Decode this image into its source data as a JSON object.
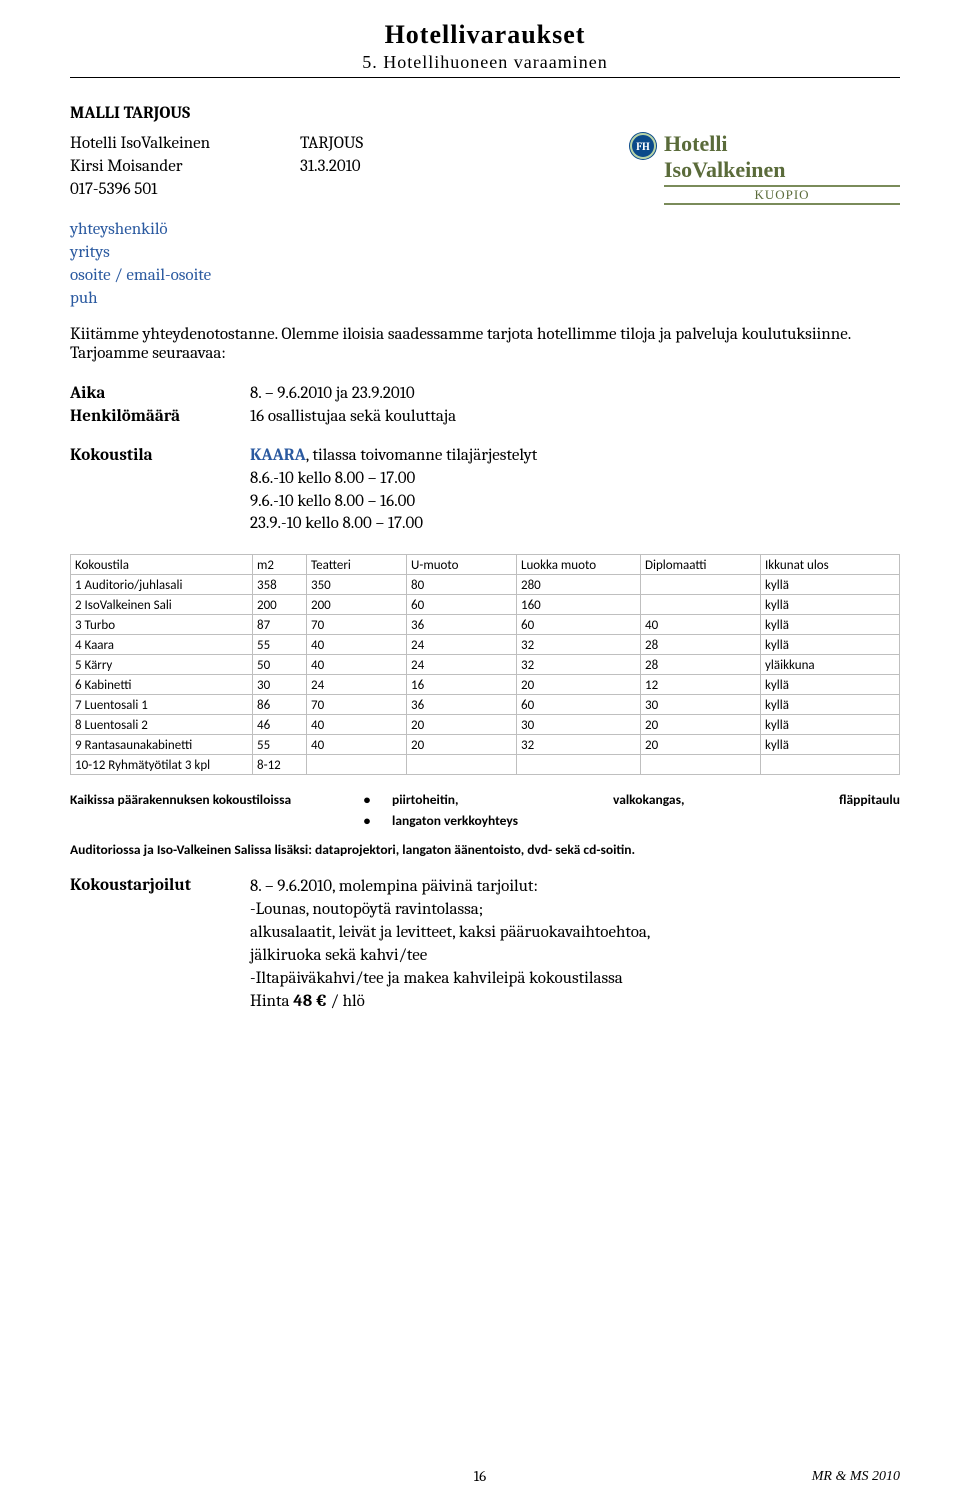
{
  "header": {
    "title": "Hotellivaraukset",
    "subtitle": "5. Hotellihuoneen varaaminen"
  },
  "section_label": "MALLI TARJOUS",
  "sender": {
    "line1": "Hotelli IsoValkeinen",
    "line2": "Kirsi Moisander",
    "line3": "017-5396 501",
    "col2_line1": "TARJOUS",
    "col2_line2": "31.3.2010"
  },
  "logo": {
    "badge": "FH",
    "text1": "Hotelli",
    "text2": "IsoValkeinen",
    "text3": "KUOPIO"
  },
  "contact_fields": {
    "f1": "yhteyshenkilö",
    "f2": "yritys",
    "f3": "osoite / email-osoite",
    "f4": "puh"
  },
  "intro": "Kiitämme yhteydenotostanne. Olemme iloisia saadessamme tarjota hotellimme tiloja ja palveluja koulutuksiinne. Tarjoamme seuraavaa:",
  "aika": {
    "label": "Aika",
    "value": "8. – 9.6.2010 ja 23.9.2010"
  },
  "henk": {
    "label": "Henkilömäärä",
    "value": "16 osallistujaa sekä kouluttaja"
  },
  "kokoustila": {
    "label": "Kokoustila",
    "kaara_pre": "KAARA",
    "kaara_rest": ", tilassa toivomanne tilajärjestelyt",
    "l1": "8.6.-10 kello 8.00 – 17.00",
    "l2": "9.6.-10 kello 8.00 – 16.00",
    "l3": "23.9.-10 kello 8.00 – 17.00"
  },
  "table": {
    "headers": [
      "Kokoustila",
      "m2",
      "Teatteri",
      "U-muoto",
      "Luokka muoto",
      "Diplomaatti",
      "Ikkunat ulos"
    ],
    "rows": [
      [
        "1 Auditorio/juhlasali",
        "358",
        "350",
        "80",
        "280",
        "",
        "kyllä"
      ],
      [
        "2 IsoValkeinen Sali",
        "200",
        "200",
        "60",
        "160",
        "",
        "kyllä"
      ],
      [
        "3 Turbo",
        "87",
        "70",
        "36",
        "60",
        "40",
        "kyllä"
      ],
      [
        "4 Kaara",
        "55",
        "40",
        "24",
        "32",
        "28",
        "kyllä"
      ],
      [
        "5 Kärry",
        "50",
        "40",
        "24",
        "32",
        "28",
        "yläikkuna"
      ],
      [
        "6 Kabinetti",
        "30",
        "24",
        "16",
        "20",
        "12",
        "kyllä"
      ],
      [
        "7 Luentosali 1",
        "86",
        "70",
        "36",
        "60",
        "30",
        "kyllä"
      ],
      [
        "8 Luentosali 2",
        "46",
        "40",
        "20",
        "30",
        "20",
        "kyllä"
      ],
      [
        "9 Rantasaunakabinetti",
        "55",
        "40",
        "20",
        "32",
        "20",
        "kyllä"
      ],
      [
        "10-12 Ryhmätyötilat 3 kpl",
        "8-12",
        "",
        "",
        "",
        "",
        ""
      ]
    ],
    "col_widths": [
      "182px",
      "54px",
      "100px",
      "110px",
      "124px",
      "120px",
      "auto"
    ]
  },
  "equip": {
    "left": "Kaikissa päärakennuksen kokoustiloissa",
    "bullet": "•",
    "r1a": "piirtoheitin,",
    "r1b": "valkokangas,",
    "r1c": "fläppitaulu",
    "r2": "langaton verkkoyhteys"
  },
  "equip_note": "Auditoriossa ja Iso-Valkeinen Salissa lisäksi: dataprojektori, langaton äänentoisto,  dvd- sekä cd-soitin.",
  "tarjoilut": {
    "label": "Kokoustarjoilut",
    "l1": "8. – 9.6.2010, molempina päivinä tarjoilut:",
    "l2": "-Lounas, noutopöytä ravintolassa;",
    "l3": "alkusalaatit, leivät ja levitteet, kaksi pääruokavaihtoehtoa,",
    "l4": "jälkiruoka sekä kahvi/tee",
    "l5": "-Iltapäiväkahvi/tee ja makea kahvileipä kokoustilassa",
    "l6_pre": "Hinta ",
    "l6_bold": "48 €",
    "l6_post": " / hlö"
  },
  "footer": {
    "page": "16",
    "right": "MR & MS 2010"
  }
}
